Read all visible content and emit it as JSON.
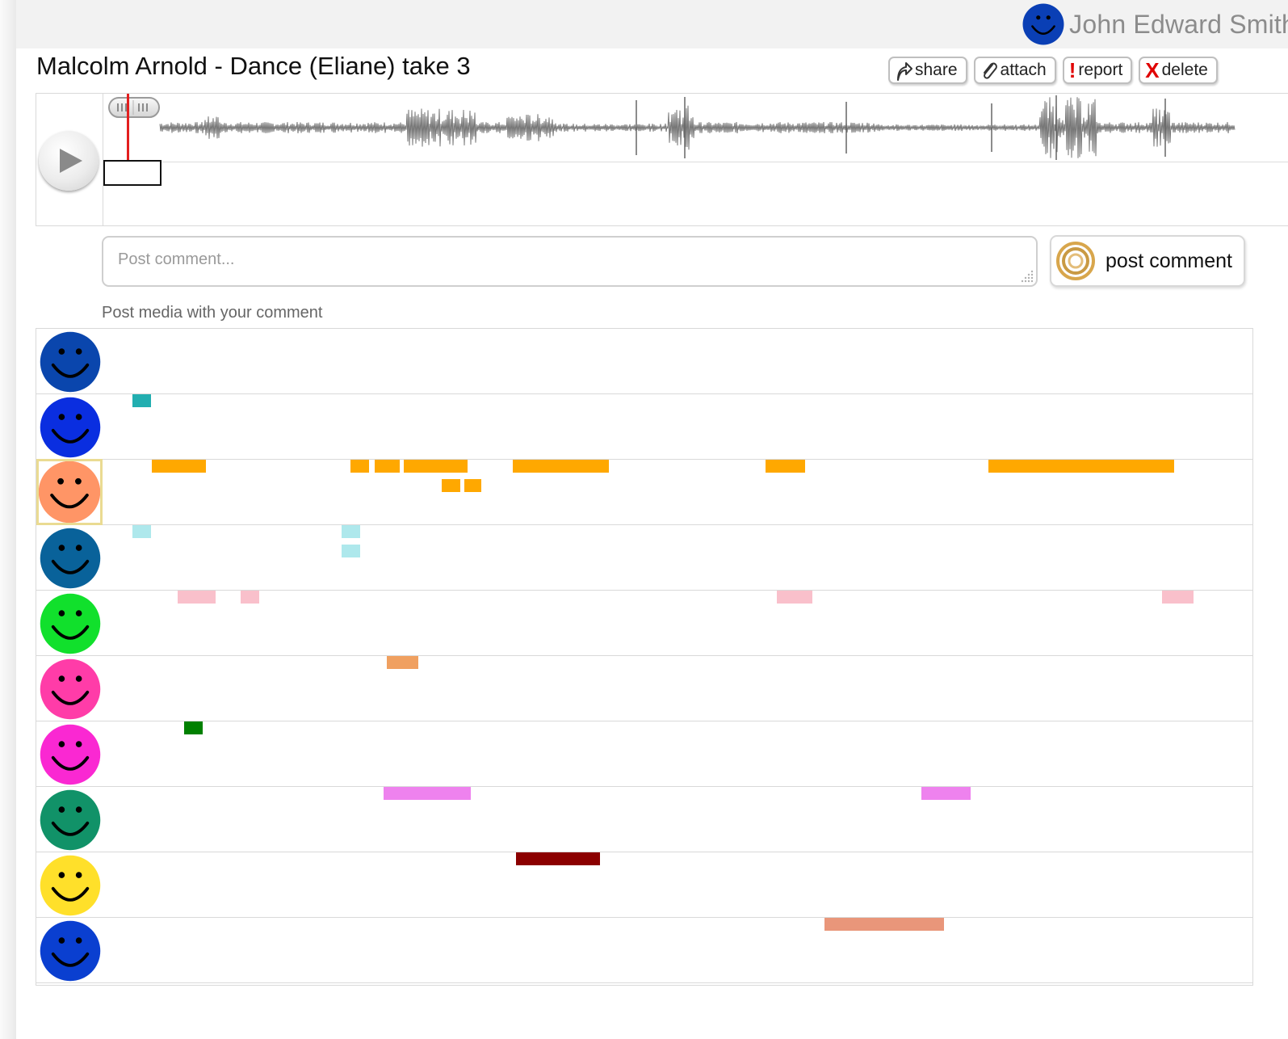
{
  "header": {
    "user_name": "John Edward Smith",
    "user_avatar_color": "#0a3fb5"
  },
  "track": {
    "title": "Malcolm Arnold - Dance (Eliane) take 3"
  },
  "actions": {
    "share_label": "share",
    "attach_label": "attach",
    "report_label": "report",
    "delete_label": "delete",
    "report_icon": "!",
    "delete_icon": "X"
  },
  "player": {
    "playhead_position": 0.02
  },
  "comment": {
    "placeholder": "Post comment...",
    "post_button_label": "post comment",
    "post_media_link": "Post media with your comment"
  },
  "annotation_rows": [
    {
      "avatar_color": "#0a46ad",
      "selected": false,
      "segments": []
    },
    {
      "avatar_color": "#0a2ee0",
      "selected": false,
      "segments": [
        {
          "start": 0.0,
          "end": 0.017,
          "lane": 0,
          "color": "#22aeb0"
        }
      ]
    },
    {
      "avatar_color": "#ff9566",
      "selected": true,
      "segments": [
        {
          "start": 0.018,
          "end": 0.068,
          "lane": 0,
          "color": "#ffa800"
        },
        {
          "start": 0.202,
          "end": 0.219,
          "lane": 0,
          "color": "#ffa800"
        },
        {
          "start": 0.225,
          "end": 0.248,
          "lane": 0,
          "color": "#ffa800"
        },
        {
          "start": 0.252,
          "end": 0.311,
          "lane": 0,
          "color": "#ffa800"
        },
        {
          "start": 0.287,
          "end": 0.304,
          "lane": 1,
          "color": "#ffa800"
        },
        {
          "start": 0.308,
          "end": 0.324,
          "lane": 1,
          "color": "#ffa800"
        },
        {
          "start": 0.353,
          "end": 0.442,
          "lane": 0,
          "color": "#ffa800"
        },
        {
          "start": 0.587,
          "end": 0.624,
          "lane": 0,
          "color": "#ffa800"
        },
        {
          "start": 0.794,
          "end": 0.966,
          "lane": 0,
          "color": "#ffa800"
        }
      ]
    },
    {
      "avatar_color": "#09629a",
      "selected": false,
      "segments": [
        {
          "start": 0.0,
          "end": 0.017,
          "lane": 0,
          "color": "#aee8ec"
        },
        {
          "start": 0.194,
          "end": 0.211,
          "lane": 0,
          "color": "#aee8ec"
        },
        {
          "start": 0.194,
          "end": 0.211,
          "lane": 1,
          "color": "#aee8ec"
        }
      ]
    },
    {
      "avatar_color": "#11e02c",
      "selected": false,
      "segments": [
        {
          "start": 0.042,
          "end": 0.077,
          "lane": 0,
          "color": "#f9c0cb"
        },
        {
          "start": 0.1,
          "end": 0.117,
          "lane": 0,
          "color": "#f9c0cb"
        },
        {
          "start": 0.598,
          "end": 0.631,
          "lane": 0,
          "color": "#f9c0cb"
        },
        {
          "start": 0.955,
          "end": 0.984,
          "lane": 0,
          "color": "#f9c0cb"
        }
      ]
    },
    {
      "avatar_color": "#ff3ca8",
      "selected": false,
      "segments": [
        {
          "start": 0.236,
          "end": 0.265,
          "lane": 0,
          "color": "#f0a060"
        }
      ]
    },
    {
      "avatar_color": "#fa28d2",
      "selected": false,
      "segments": [
        {
          "start": 0.048,
          "end": 0.065,
          "lane": 0,
          "color": "#008000"
        }
      ]
    },
    {
      "avatar_color": "#119268",
      "selected": false,
      "segments": [
        {
          "start": 0.233,
          "end": 0.314,
          "lane": 0,
          "color": "#ee82ee"
        },
        {
          "start": 0.732,
          "end": 0.778,
          "lane": 0,
          "color": "#ee82ee"
        }
      ]
    },
    {
      "avatar_color": "#ffe02a",
      "selected": false,
      "segments": [
        {
          "start": 0.356,
          "end": 0.434,
          "lane": 0,
          "color": "#8b0000"
        }
      ]
    },
    {
      "avatar_color": "#0a3fd0",
      "selected": false,
      "segments": [
        {
          "start": 0.642,
          "end": 0.753,
          "lane": 0,
          "color": "#e9967a"
        }
      ]
    }
  ]
}
